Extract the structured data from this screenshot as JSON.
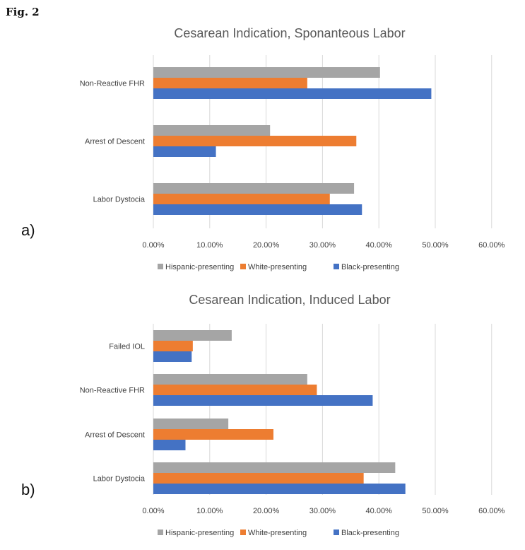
{
  "figure_label": "Fig. 2",
  "colors": {
    "hispanic": "#a5a5a5",
    "white": "#ed7d31",
    "black": "#4472c4",
    "grid": "#d9d9d9",
    "text": "#404040"
  },
  "chart_data": [
    {
      "type": "bar",
      "orientation": "horizontal",
      "panel_label": "a)",
      "title": "Cesarean Indication, Sponanteous Labor",
      "categories": [
        "Non-Reactive FHR",
        "Arrest of Descent",
        "Labor Dystocia"
      ],
      "series": [
        {
          "name": "Hispanic-presenting",
          "color": "#a5a5a5",
          "values": [
            40.2,
            20.7,
            35.6
          ]
        },
        {
          "name": "White-presenting",
          "color": "#ed7d31",
          "values": [
            27.3,
            36.0,
            31.3
          ]
        },
        {
          "name": "Black-presenting",
          "color": "#4472c4",
          "values": [
            49.3,
            11.1,
            37.0
          ]
        }
      ],
      "xlim": [
        0,
        60
      ],
      "xticks": [
        "0.00%",
        "10.00%",
        "20.00%",
        "30.00%",
        "40.00%",
        "50.00%",
        "60.00%"
      ],
      "grid": true,
      "legend_position": "bottom"
    },
    {
      "type": "bar",
      "orientation": "horizontal",
      "panel_label": "b)",
      "title": "Cesarean Indication, Induced Labor",
      "categories": [
        "Failed IOL",
        "Non-Reactive FHR",
        "Arrest of Descent",
        "Labor Dystocia"
      ],
      "series": [
        {
          "name": "Hispanic-presenting",
          "color": "#a5a5a5",
          "values": [
            13.9,
            27.3,
            13.3,
            42.9
          ]
        },
        {
          "name": "White-presenting",
          "color": "#ed7d31",
          "values": [
            7.0,
            29.0,
            21.3,
            37.3
          ]
        },
        {
          "name": "Black-presenting",
          "color": "#4472c4",
          "values": [
            6.8,
            38.9,
            5.7,
            44.7
          ]
        }
      ],
      "xlim": [
        0,
        60
      ],
      "xticks": [
        "0.00%",
        "10.00%",
        "20.00%",
        "30.00%",
        "40.00%",
        "50.00%",
        "60.00%"
      ],
      "grid": true,
      "legend_position": "bottom"
    }
  ]
}
